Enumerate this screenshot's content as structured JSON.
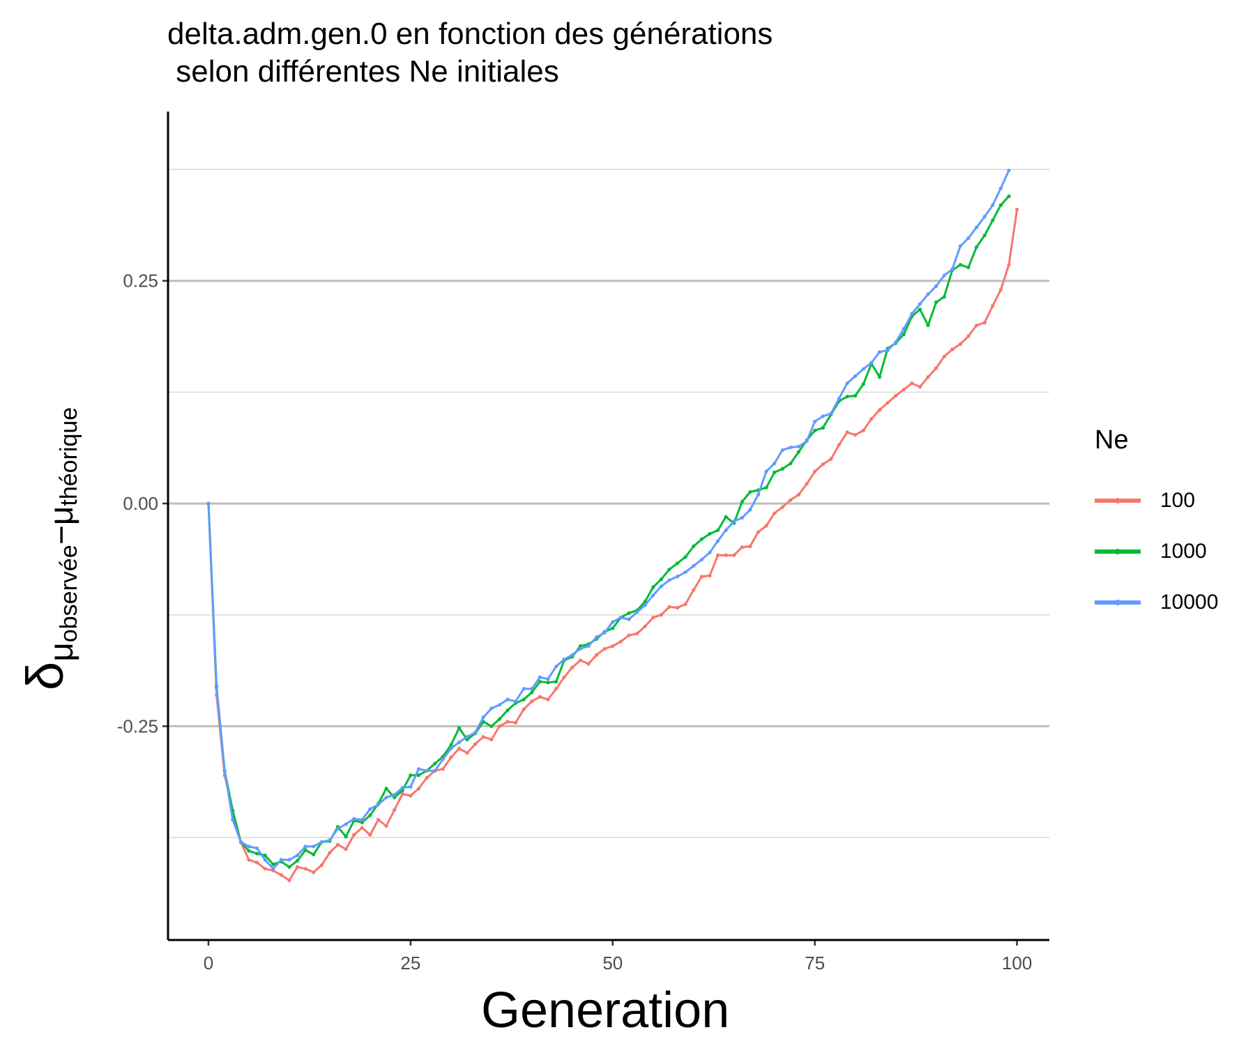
{
  "title_lines": [
    "delta.adm.gen.0 en fonction des générations",
    " selon différentes Ne initiales"
  ],
  "chart_data": {
    "type": "line",
    "title": "delta.adm.gen.0 en fonction des générations\n selon différentes Ne initiales",
    "xlabel": "Generation",
    "ylabel": {
      "delta": "δ",
      "sub1": "μ",
      "sub1_sub": "observée",
      "minus": "−",
      "sub2": "μ",
      "sub2_sub": "théorique"
    },
    "xlim": [
      -5,
      104
    ],
    "ylim": [
      -0.49,
      0.44
    ],
    "x_ticks": [
      0,
      25,
      50,
      75,
      100
    ],
    "x_tick_labels": [
      "0",
      "25",
      "50",
      "75",
      "100"
    ],
    "y_ticks": [
      -0.25,
      0,
      0.25
    ],
    "y_tick_labels": [
      "-0.25",
      "0.00",
      "0.25"
    ],
    "y_minor_ticks": [
      -0.375,
      -0.125,
      0.125,
      0.375
    ],
    "grid": "horizontal",
    "legend": {
      "title": "Ne",
      "position": "right"
    },
    "series": [
      {
        "name": "100",
        "color": "#F8766D",
        "x_start": 0,
        "values": [
          0.0,
          -0.215,
          -0.305,
          -0.345,
          -0.38,
          -0.4,
          -0.403,
          -0.41,
          -0.412,
          -0.417,
          -0.423,
          -0.408,
          -0.41,
          -0.414,
          -0.406,
          -0.392,
          -0.383,
          -0.388,
          -0.372,
          -0.364,
          -0.372,
          -0.355,
          -0.362,
          -0.344,
          -0.326,
          -0.328,
          -0.32,
          -0.308,
          -0.3,
          -0.298,
          -0.285,
          -0.275,
          -0.28,
          -0.27,
          -0.262,
          -0.265,
          -0.25,
          -0.245,
          -0.246,
          -0.231,
          -0.222,
          -0.217,
          -0.22,
          -0.208,
          -0.195,
          -0.184,
          -0.176,
          -0.18,
          -0.17,
          -0.163,
          -0.16,
          -0.155,
          -0.148,
          -0.146,
          -0.138,
          -0.128,
          -0.125,
          -0.116,
          -0.117,
          -0.113,
          -0.097,
          -0.082,
          -0.081,
          -0.058,
          -0.058,
          -0.058,
          -0.049,
          -0.048,
          -0.032,
          -0.025,
          -0.011,
          -0.004,
          0.004,
          0.01,
          0.022,
          0.036,
          0.044,
          0.05,
          0.066,
          0.08,
          0.077,
          0.082,
          0.095,
          0.105,
          0.113,
          0.121,
          0.128,
          0.135,
          0.131,
          0.142,
          0.152,
          0.165,
          0.173,
          0.179,
          0.188,
          0.2,
          0.203,
          0.222,
          0.24,
          0.268,
          0.33
        ]
      },
      {
        "name": "1000",
        "color": "#00BA38",
        "x_start": 0,
        "values": [
          0.0,
          -0.205,
          -0.3,
          -0.345,
          -0.38,
          -0.39,
          -0.393,
          -0.395,
          -0.405,
          -0.402,
          -0.408,
          -0.401,
          -0.389,
          -0.394,
          -0.38,
          -0.379,
          -0.363,
          -0.374,
          -0.356,
          -0.358,
          -0.35,
          -0.337,
          -0.32,
          -0.33,
          -0.322,
          -0.305,
          -0.305,
          -0.3,
          -0.292,
          -0.284,
          -0.271,
          -0.252,
          -0.265,
          -0.258,
          -0.245,
          -0.25,
          -0.242,
          -0.232,
          -0.224,
          -0.22,
          -0.212,
          -0.2,
          -0.201,
          -0.2,
          -0.176,
          -0.172,
          -0.16,
          -0.158,
          -0.152,
          -0.144,
          -0.14,
          -0.128,
          -0.123,
          -0.12,
          -0.11,
          -0.094,
          -0.085,
          -0.074,
          -0.067,
          -0.06,
          -0.048,
          -0.04,
          -0.034,
          -0.03,
          -0.015,
          -0.022,
          0.002,
          0.013,
          0.015,
          0.018,
          0.035,
          0.039,
          0.045,
          0.058,
          0.071,
          0.082,
          0.085,
          0.1,
          0.115,
          0.12,
          0.121,
          0.134,
          0.157,
          0.142,
          0.174,
          0.18,
          0.19,
          0.21,
          0.218,
          0.2,
          0.226,
          0.232,
          0.262,
          0.268,
          0.265,
          0.288,
          0.301,
          0.318,
          0.335,
          0.345
        ]
      },
      {
        "name": "10000",
        "color": "#619CFF",
        "x_start": 0,
        "values": [
          0.0,
          -0.207,
          -0.3,
          -0.355,
          -0.38,
          -0.385,
          -0.387,
          -0.4,
          -0.41,
          -0.4,
          -0.4,
          -0.395,
          -0.385,
          -0.385,
          -0.38,
          -0.378,
          -0.365,
          -0.36,
          -0.354,
          -0.355,
          -0.343,
          -0.338,
          -0.33,
          -0.327,
          -0.319,
          -0.318,
          -0.298,
          -0.3,
          -0.3,
          -0.287,
          -0.275,
          -0.268,
          -0.262,
          -0.257,
          -0.24,
          -0.23,
          -0.226,
          -0.22,
          -0.222,
          -0.208,
          -0.208,
          -0.195,
          -0.197,
          -0.183,
          -0.175,
          -0.17,
          -0.163,
          -0.16,
          -0.15,
          -0.145,
          -0.133,
          -0.128,
          -0.13,
          -0.122,
          -0.114,
          -0.103,
          -0.093,
          -0.086,
          -0.082,
          -0.077,
          -0.07,
          -0.063,
          -0.055,
          -0.042,
          -0.03,
          -0.02,
          -0.016,
          -0.007,
          0.01,
          0.036,
          0.045,
          0.06,
          0.063,
          0.064,
          0.07,
          0.092,
          0.098,
          0.101,
          0.118,
          0.135,
          0.143,
          0.151,
          0.158,
          0.17,
          0.172,
          0.181,
          0.196,
          0.213,
          0.224,
          0.235,
          0.244,
          0.256,
          0.263,
          0.289,
          0.298,
          0.31,
          0.322,
          0.335,
          0.354,
          0.374
        ]
      }
    ]
  }
}
